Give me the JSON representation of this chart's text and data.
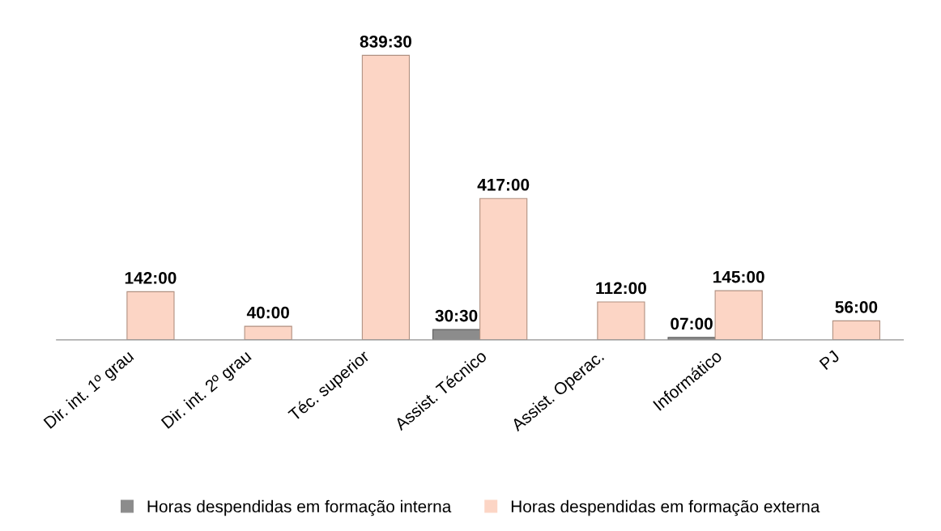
{
  "chart_data": {
    "type": "bar",
    "categories": [
      "Dir. int. 1º grau",
      "Dir. int. 2º grau",
      "Téc. superior",
      "Assist. Técnico",
      "Assist. Operac.",
      "Informático",
      "PJ"
    ],
    "series": [
      {
        "name": "Horas despendidas em formação interna",
        "color": "#8c8c8c",
        "values": [
          null,
          null,
          null,
          30.5,
          null,
          7,
          null
        ],
        "value_labels": [
          null,
          null,
          null,
          "30:30",
          null,
          "07:00",
          null
        ]
      },
      {
        "name": "Horas despendidas em formação externa",
        "color": "#fcd5c5",
        "values": [
          142,
          40,
          839.5,
          417,
          112,
          145,
          56
        ],
        "value_labels": [
          "142:00",
          "40:00",
          "839:30",
          "417:00",
          "112:00",
          "145:00",
          "56:00"
        ]
      }
    ],
    "legend": "bottom",
    "grid": false
  }
}
